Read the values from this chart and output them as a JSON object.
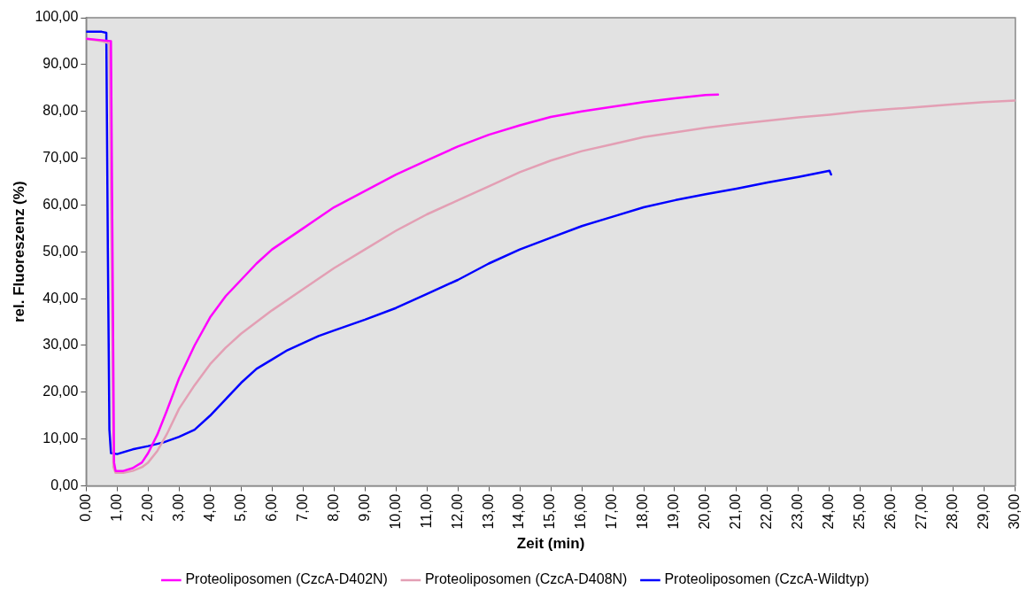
{
  "chart_data": {
    "type": "line",
    "xlabel": "Zeit (min)",
    "ylabel": "rel. Fluoreszenz (%)",
    "xlim": [
      0,
      30
    ],
    "xticks": [
      {
        "value": 0,
        "label": "0,00"
      },
      {
        "value": 1,
        "label": "1,00"
      },
      {
        "value": 2,
        "label": "2,00"
      },
      {
        "value": 3,
        "label": "3,00"
      },
      {
        "value": 4,
        "label": "4,00"
      },
      {
        "value": 5,
        "label": "5,00"
      },
      {
        "value": 6,
        "label": "6,00"
      },
      {
        "value": 7,
        "label": "7,00"
      },
      {
        "value": 8,
        "label": "8,00"
      },
      {
        "value": 9,
        "label": "9,00"
      },
      {
        "value": 10,
        "label": "10,00"
      },
      {
        "value": 11,
        "label": "11,00"
      },
      {
        "value": 12,
        "label": "12,00"
      },
      {
        "value": 13,
        "label": "13,00"
      },
      {
        "value": 14,
        "label": "14,00"
      },
      {
        "value": 15,
        "label": "15,00"
      },
      {
        "value": 16,
        "label": "16,00"
      },
      {
        "value": 17,
        "label": "17,00"
      },
      {
        "value": 18,
        "label": "18,00"
      },
      {
        "value": 19,
        "label": "19,00"
      },
      {
        "value": 20,
        "label": "20,00"
      },
      {
        "value": 21,
        "label": "21,00"
      },
      {
        "value": 22,
        "label": "22,00"
      },
      {
        "value": 23,
        "label": "23,00"
      },
      {
        "value": 24,
        "label": "24,00"
      },
      {
        "value": 25,
        "label": "25,00"
      },
      {
        "value": 26,
        "label": "26,00"
      },
      {
        "value": 27,
        "label": "27,00"
      },
      {
        "value": 28,
        "label": "28,00"
      },
      {
        "value": 29,
        "label": "29,00"
      },
      {
        "value": 30,
        "label": "30,00"
      }
    ],
    "ylim": [
      0,
      100
    ],
    "yticks": [
      {
        "value": 0,
        "label": "0,00"
      },
      {
        "value": 10,
        "label": "10,00"
      },
      {
        "value": 20,
        "label": "20,00"
      },
      {
        "value": 30,
        "label": "30,00"
      },
      {
        "value": 40,
        "label": "40,00"
      },
      {
        "value": 50,
        "label": "50,00"
      },
      {
        "value": 60,
        "label": "60,00"
      },
      {
        "value": 70,
        "label": "70,00"
      },
      {
        "value": 80,
        "label": "80,00"
      },
      {
        "value": 90,
        "label": "90,00"
      },
      {
        "value": 100,
        "label": "100,00"
      }
    ],
    "grid": false,
    "legend": "bottom",
    "marker": "none",
    "line_style": "solid",
    "series": [
      {
        "name": "Proteoliposomen (CzcA-D402N)",
        "color": "#ff00ff",
        "x": [
          0,
          0.5,
          0.8,
          0.85,
          0.9,
          0.95,
          1.2,
          1.5,
          1.8,
          2,
          2.3,
          2.6,
          3,
          3.5,
          4,
          4.5,
          5,
          5.5,
          6,
          7,
          8,
          9,
          10,
          11,
          12,
          13,
          14,
          15,
          16,
          17,
          18,
          19,
          20,
          20.4
        ],
        "values": [
          95.5,
          95.2,
          95,
          50,
          5,
          3.2,
          3.2,
          3.8,
          5,
          7,
          11,
          16,
          23,
          30,
          36,
          40.5,
          44,
          47.5,
          50.5,
          55,
          59.5,
          63,
          66.5,
          69.5,
          72.5,
          75,
          77,
          78.8,
          80,
          81,
          82,
          82.8,
          83.5,
          83.6
        ]
      },
      {
        "name": "Proteoliposomen (CzcA-D408N)",
        "color": "#e39fb4",
        "x": [
          0,
          0.5,
          0.75,
          0.82,
          0.88,
          0.95,
          1.2,
          1.5,
          1.8,
          2,
          2.3,
          2.6,
          3,
          3.5,
          4,
          4.5,
          5,
          6,
          7,
          8,
          9,
          10,
          11,
          12,
          13,
          14,
          15,
          16,
          17,
          18,
          19,
          20,
          21,
          22,
          23,
          24,
          25,
          26,
          27,
          28,
          29,
          30
        ],
        "values": [
          95.5,
          95,
          94.5,
          50,
          4,
          2.8,
          2.8,
          3.2,
          4,
          5,
          7.5,
          11,
          16.5,
          21.5,
          26,
          29.5,
          32.5,
          37.5,
          42,
          46.5,
          50.5,
          54.5,
          58,
          61,
          64,
          67,
          69.5,
          71.5,
          73,
          74.5,
          75.5,
          76.5,
          77.3,
          78,
          78.7,
          79.3,
          80,
          80.5,
          81,
          81.5,
          82,
          82.3
        ]
      },
      {
        "name": "Proteoliposomen (CzcA-Wildtyp)",
        "color": "#0000ff",
        "x": [
          0,
          0.5,
          0.65,
          0.7,
          0.75,
          0.8,
          1,
          1.5,
          2,
          2.5,
          3,
          3.5,
          4,
          4.5,
          5,
          5.5,
          6,
          6.5,
          7,
          7.5,
          8,
          9,
          10,
          11,
          12,
          13,
          14,
          15,
          16,
          17,
          18,
          19,
          20,
          21,
          22,
          23,
          24,
          24.05
        ],
        "values": [
          97,
          97,
          96.8,
          50,
          12,
          7,
          6.8,
          7.8,
          8.5,
          9.3,
          10.5,
          12,
          15,
          18.5,
          22,
          25,
          27,
          29,
          30.5,
          32,
          33.2,
          35.5,
          38,
          41,
          44,
          47.5,
          50.5,
          53,
          55.5,
          57.5,
          59.5,
          61,
          62.3,
          63.5,
          64.8,
          66,
          67.3,
          66.5
        ]
      }
    ]
  }
}
